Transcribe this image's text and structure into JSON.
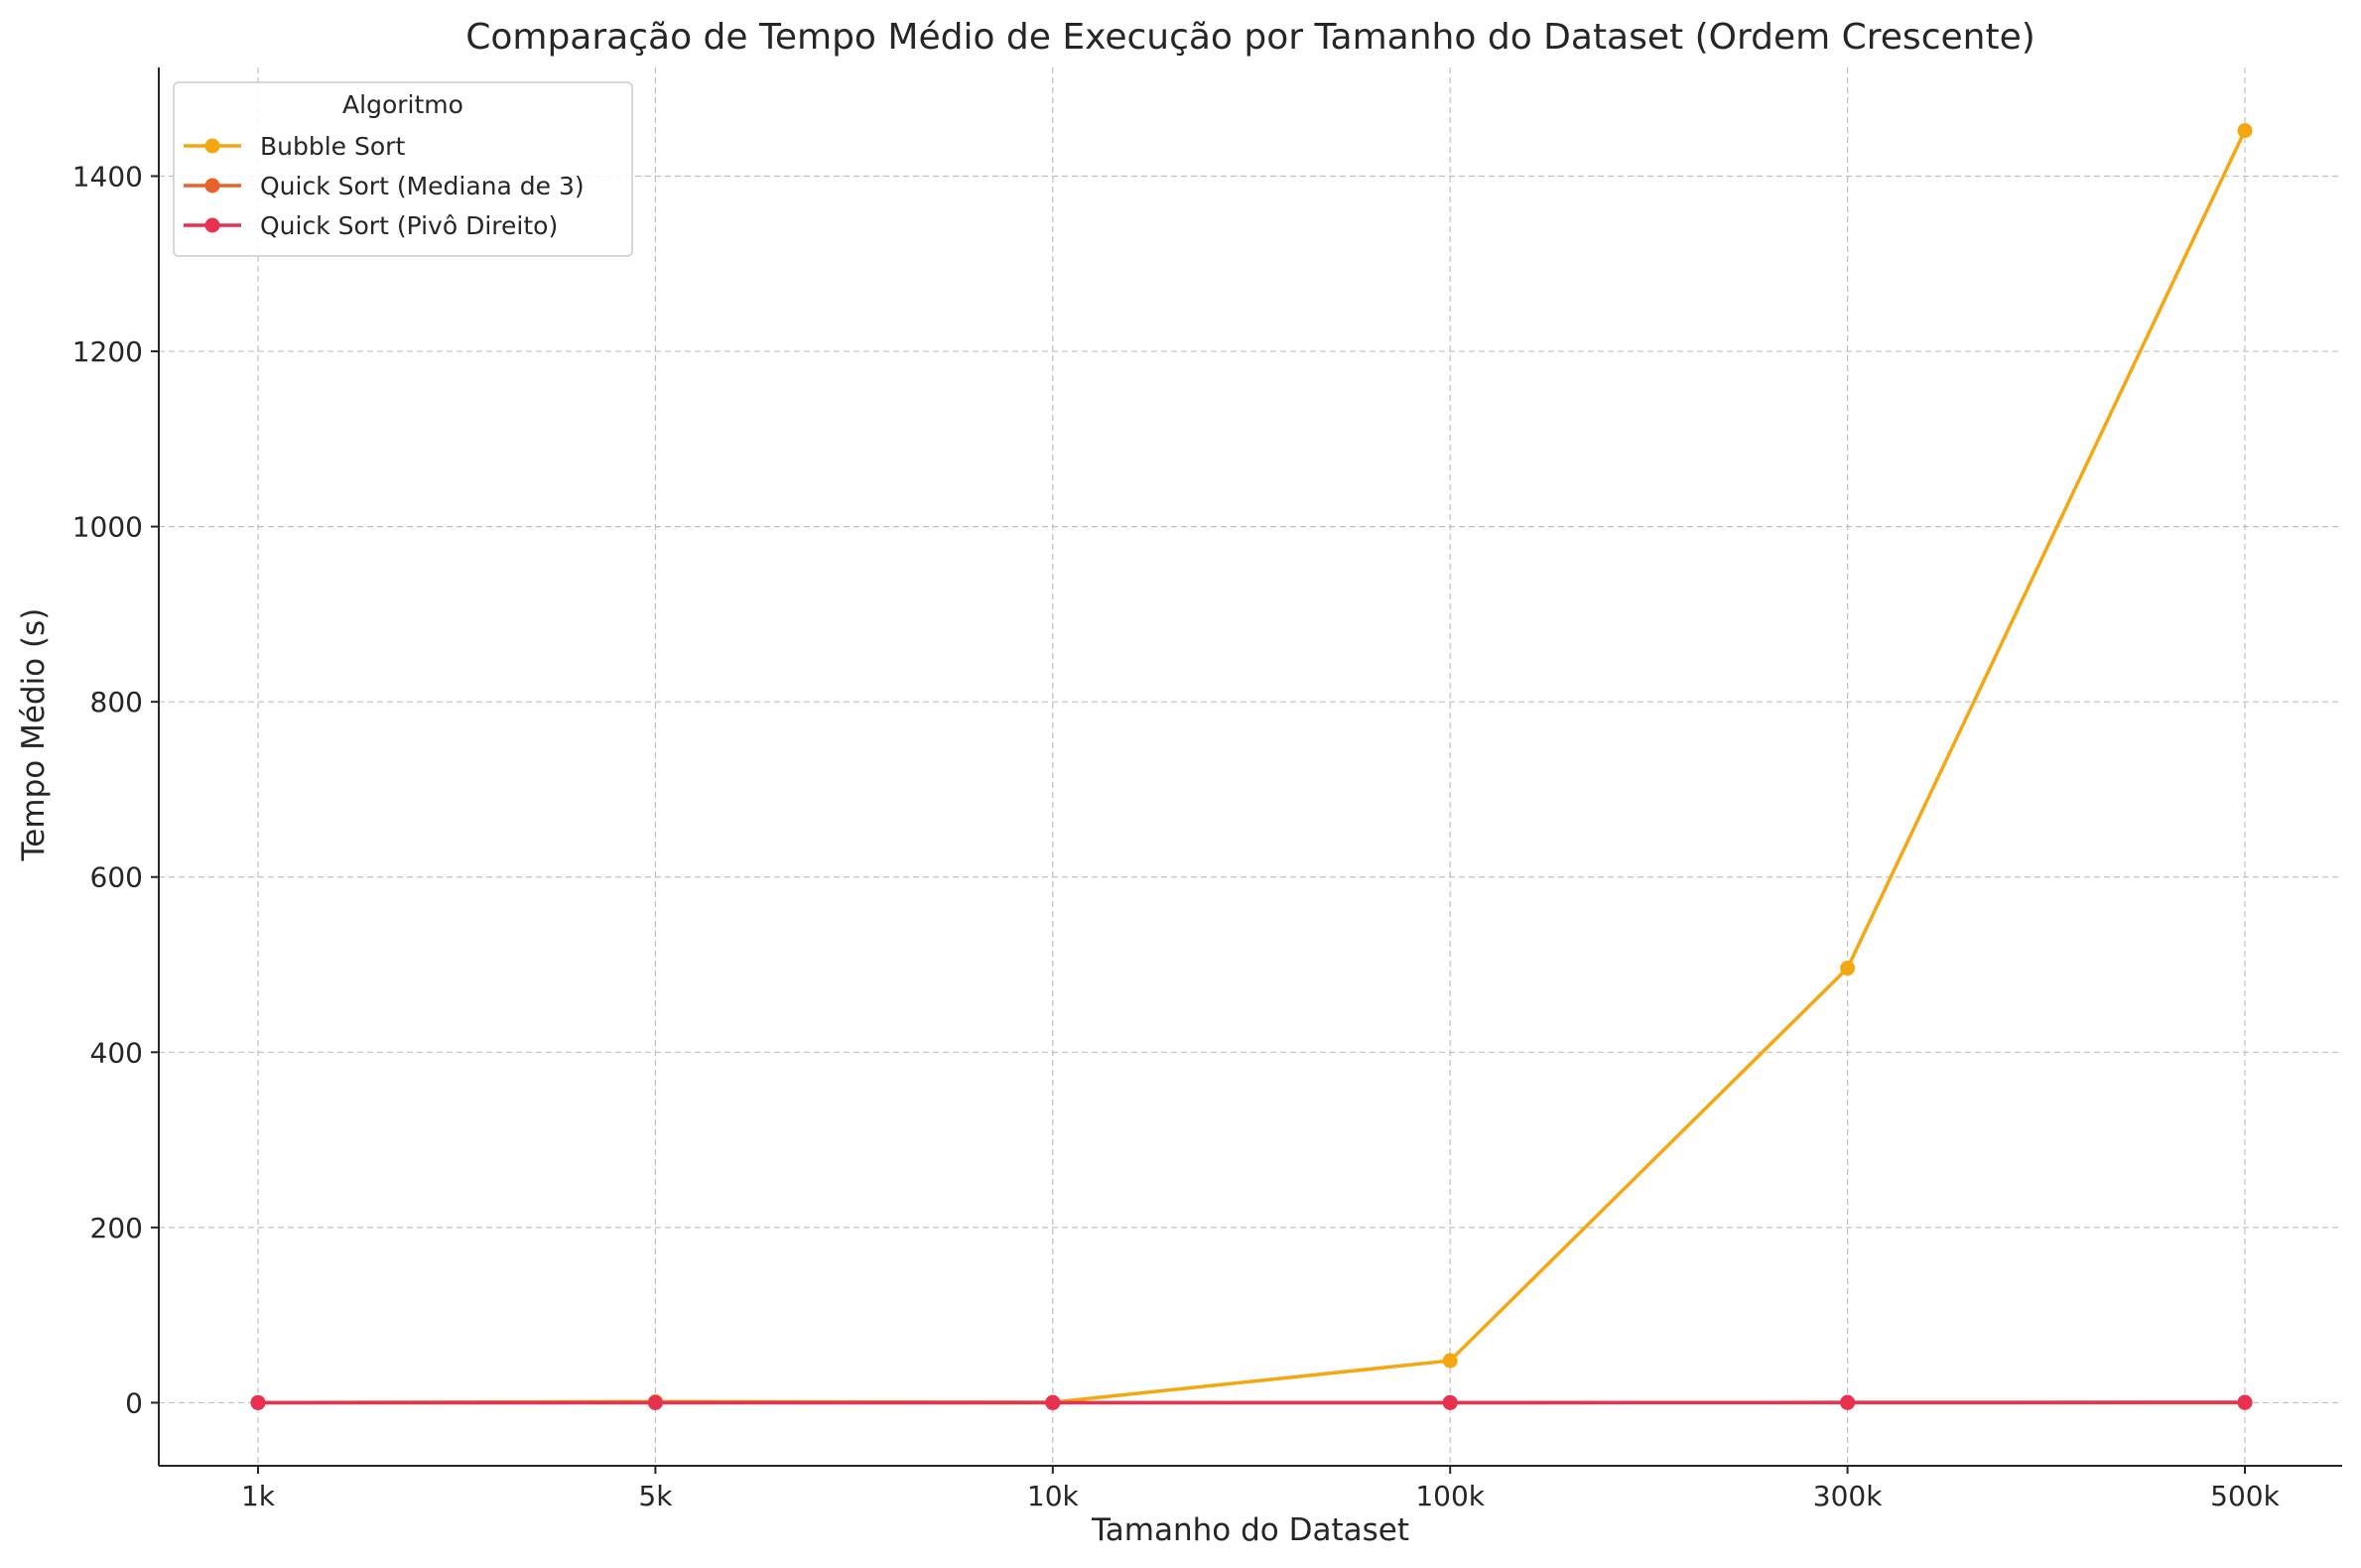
{
  "chart_data": {
    "type": "line",
    "title": "Comparação de Tempo Médio de Execução por Tamanho do Dataset (Ordem Crescente)",
    "xlabel": "Tamanho do Dataset",
    "ylabel": "Tempo Médio (s)",
    "categories": [
      "1k",
      "5k",
      "10k",
      "100k",
      "300k",
      "500k"
    ],
    "ylim": [
      -72,
      1524
    ],
    "yticks": [
      0,
      200,
      400,
      600,
      800,
      1000,
      1200,
      1400
    ],
    "grid": true,
    "legend": {
      "title": "Algoritmo",
      "position": "top-left"
    },
    "series": [
      {
        "name": "Bubble Sort",
        "color": "#f5a70f",
        "values": [
          0.1,
          1.2,
          0.5,
          48,
          496,
          1452
        ]
      },
      {
        "name": "Quick Sort (Mediana de 3)",
        "color": "#e8622a",
        "values": [
          0,
          0,
          0,
          0,
          0,
          0
        ]
      },
      {
        "name": "Quick Sort (Pivô Direito)",
        "color": "#ea3050",
        "values": [
          0,
          0,
          0,
          0.1,
          0.3,
          0.5
        ]
      }
    ]
  }
}
